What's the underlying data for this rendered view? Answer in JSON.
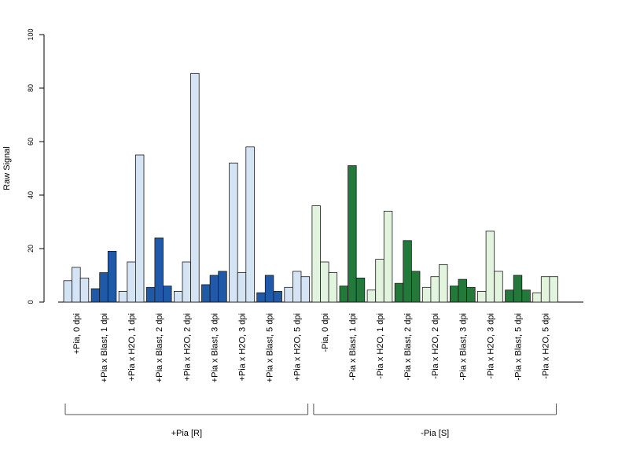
{
  "chart_data": {
    "type": "bar",
    "ylabel": "Raw Signal",
    "ylim": [
      0,
      100
    ],
    "yticks": [
      0,
      20,
      40,
      60,
      80,
      100
    ],
    "colors": {
      "R_light": "#d5e4f5",
      "R_dark": "#1f5aa8",
      "S_light": "#e2f4de",
      "S_dark": "#22793a",
      "border": "#1a1a1a"
    },
    "categories": [
      "+Pia, 0 dpi",
      "+Pia x Blast, 1 dpi",
      "+Pia x H2O, 1 dpi",
      "+Pia x Blast, 2 dpi",
      "+Pia x H2O, 2 dpi",
      "+Pia x Blast, 3 dpi",
      "+Pia x H2O, 3 dpi",
      "+Pia x Blast, 5 dpi",
      "+Pia x H2O, 5 dpi",
      "-Pia, 0 dpi",
      "-Pia x Blast, 1 dpi",
      "-Pia x H2O, 1 dpi",
      "-Pia x Blast, 2 dpi",
      "-Pia x H2O, 2 dpi",
      "-Pia x Blast, 3 dpi",
      "-Pia x H2O, 3 dpi",
      "-Pia x Blast, 5 dpi",
      "-Pia x H2O, 5 dpi"
    ],
    "values": [
      [
        8,
        13,
        9
      ],
      [
        5,
        11,
        19
      ],
      [
        4,
        15,
        55
      ],
      [
        5.5,
        24,
        6
      ],
      [
        4,
        15,
        85.5
      ],
      [
        6.5,
        10,
        11.5
      ],
      [
        52,
        11,
        58
      ],
      [
        3.5,
        10,
        4
      ],
      [
        5.5,
        11.5,
        9.5
      ],
      [
        36,
        15,
        11
      ],
      [
        6,
        51,
        9
      ],
      [
        4.5,
        16,
        34
      ],
      [
        7,
        23,
        11.5
      ],
      [
        5.5,
        9.5,
        14
      ],
      [
        6,
        8.5,
        5.5
      ],
      [
        4,
        26.5,
        11.5
      ],
      [
        4.5,
        10,
        4.5
      ],
      [
        3.5,
        9.5,
        9.5
      ]
    ],
    "groups": [
      {
        "label": "+Pia [R]",
        "from": 0,
        "to": 8
      },
      {
        "label": "-Pia [S]",
        "from": 9,
        "to": 17
      }
    ]
  }
}
